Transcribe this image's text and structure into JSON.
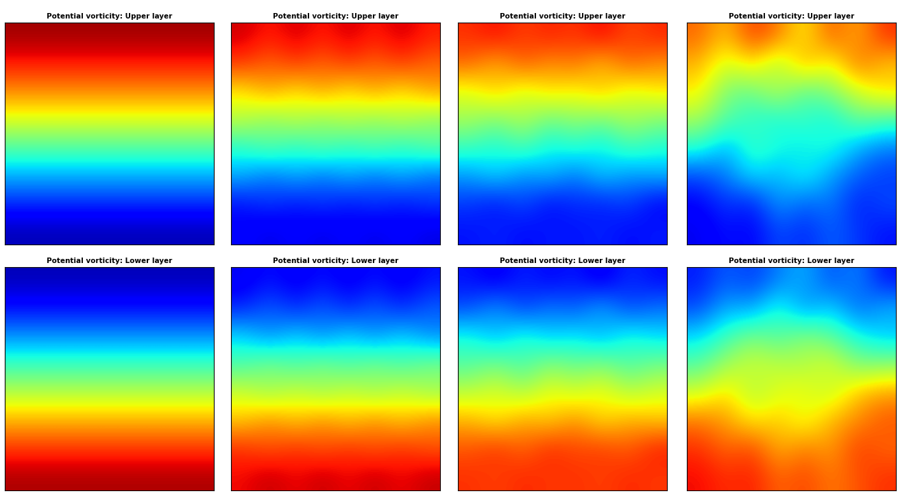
{
  "chart_data": [
    {
      "type": "heatmap",
      "title": "Potential vorticity: Upper layer",
      "color": "jet",
      "color_range": [
        0,
        1
      ],
      "tick_labels": false,
      "cells": [
        [
          0.97,
          0.97,
          0.97,
          0.97,
          0.97,
          0.97,
          0.97,
          0.97
        ],
        [
          0.88,
          0.88,
          0.88,
          0.88,
          0.88,
          0.88,
          0.88,
          0.88
        ],
        [
          0.76,
          0.76,
          0.76,
          0.76,
          0.76,
          0.76,
          0.76,
          0.76
        ],
        [
          0.62,
          0.62,
          0.62,
          0.62,
          0.62,
          0.62,
          0.62,
          0.62
        ],
        [
          0.45,
          0.45,
          0.45,
          0.45,
          0.45,
          0.45,
          0.45,
          0.45
        ],
        [
          0.3,
          0.3,
          0.3,
          0.3,
          0.3,
          0.3,
          0.3,
          0.3
        ],
        [
          0.17,
          0.17,
          0.17,
          0.17,
          0.17,
          0.17,
          0.17,
          0.17
        ],
        [
          0.05,
          0.05,
          0.05,
          0.05,
          0.05,
          0.05,
          0.05,
          0.05
        ]
      ]
    },
    {
      "type": "heatmap",
      "title": "Potential vorticity: Upper layer",
      "color": "jet",
      "color_range": [
        0,
        1
      ],
      "tick_labels": false,
      "cells": [
        [
          0.93,
          0.88,
          0.93,
          0.88,
          0.93,
          0.88,
          0.93,
          0.88
        ],
        [
          0.85,
          0.8,
          0.85,
          0.8,
          0.85,
          0.8,
          0.85,
          0.8
        ],
        [
          0.66,
          0.74,
          0.66,
          0.74,
          0.66,
          0.74,
          0.66,
          0.74
        ],
        [
          0.58,
          0.52,
          0.58,
          0.52,
          0.58,
          0.52,
          0.58,
          0.52
        ],
        [
          0.4,
          0.46,
          0.4,
          0.46,
          0.4,
          0.46,
          0.4,
          0.46
        ],
        [
          0.3,
          0.24,
          0.3,
          0.24,
          0.3,
          0.24,
          0.3,
          0.24
        ],
        [
          0.14,
          0.18,
          0.14,
          0.18,
          0.14,
          0.18,
          0.14,
          0.18
        ],
        [
          0.12,
          0.09,
          0.12,
          0.09,
          0.12,
          0.09,
          0.12,
          0.09
        ]
      ]
    },
    {
      "type": "heatmap",
      "title": "Potential vorticity: Upper layer",
      "color": "jet",
      "color_range": [
        0,
        1
      ],
      "tick_labels": false,
      "cells": [
        [
          0.86,
          0.9,
          0.84,
          0.88,
          0.85,
          0.91,
          0.83,
          0.87
        ],
        [
          0.8,
          0.72,
          0.82,
          0.75,
          0.79,
          0.7,
          0.81,
          0.76
        ],
        [
          0.62,
          0.7,
          0.6,
          0.68,
          0.64,
          0.71,
          0.61,
          0.66
        ],
        [
          0.55,
          0.5,
          0.57,
          0.48,
          0.53,
          0.49,
          0.56,
          0.51
        ],
        [
          0.42,
          0.38,
          0.44,
          0.36,
          0.4,
          0.35,
          0.43,
          0.39
        ],
        [
          0.28,
          0.34,
          0.26,
          0.31,
          0.24,
          0.33,
          0.27,
          0.3
        ],
        [
          0.18,
          0.14,
          0.2,
          0.13,
          0.17,
          0.15,
          0.19,
          0.12
        ],
        [
          0.14,
          0.16,
          0.13,
          0.15,
          0.14,
          0.16,
          0.13,
          0.15
        ]
      ]
    },
    {
      "type": "heatmap",
      "title": "Potential vorticity: Upper layer",
      "color": "jet",
      "color_range": [
        0,
        1
      ],
      "tick_labels": false,
      "cells": [
        [
          0.8,
          0.7,
          0.85,
          0.78,
          0.65,
          0.82,
          0.72,
          0.86
        ],
        [
          0.72,
          0.6,
          0.68,
          0.55,
          0.74,
          0.62,
          0.8,
          0.7
        ],
        [
          0.66,
          0.5,
          0.48,
          0.58,
          0.45,
          0.52,
          0.6,
          0.68
        ],
        [
          0.55,
          0.45,
          0.4,
          0.38,
          0.42,
          0.36,
          0.48,
          0.44
        ],
        [
          0.4,
          0.3,
          0.42,
          0.38,
          0.35,
          0.4,
          0.3,
          0.25
        ],
        [
          0.2,
          0.25,
          0.35,
          0.3,
          0.38,
          0.28,
          0.22,
          0.18
        ],
        [
          0.12,
          0.18,
          0.15,
          0.28,
          0.22,
          0.25,
          0.15,
          0.2
        ],
        [
          0.1,
          0.14,
          0.12,
          0.2,
          0.16,
          0.22,
          0.18,
          0.14
        ]
      ]
    },
    {
      "type": "heatmap",
      "title": "Potential vorticity: Lower layer",
      "color": "jet",
      "color_range": [
        0,
        1
      ],
      "tick_labels": false,
      "cells": [
        [
          0.05,
          0.05,
          0.05,
          0.05,
          0.05,
          0.05,
          0.05,
          0.05
        ],
        [
          0.14,
          0.14,
          0.14,
          0.14,
          0.14,
          0.14,
          0.14,
          0.14
        ],
        [
          0.27,
          0.27,
          0.27,
          0.27,
          0.27,
          0.27,
          0.27,
          0.27
        ],
        [
          0.42,
          0.42,
          0.42,
          0.42,
          0.42,
          0.42,
          0.42,
          0.42
        ],
        [
          0.57,
          0.57,
          0.57,
          0.57,
          0.57,
          0.57,
          0.57,
          0.57
        ],
        [
          0.72,
          0.72,
          0.72,
          0.72,
          0.72,
          0.72,
          0.72,
          0.72
        ],
        [
          0.85,
          0.85,
          0.85,
          0.85,
          0.85,
          0.85,
          0.85,
          0.85
        ],
        [
          0.96,
          0.96,
          0.96,
          0.96,
          0.96,
          0.96,
          0.96,
          0.96
        ]
      ]
    },
    {
      "type": "heatmap",
      "title": "Potential vorticity: Lower layer",
      "color": "jet",
      "color_range": [
        0,
        1
      ],
      "tick_labels": false,
      "cells": [
        [
          0.1,
          0.14,
          0.1,
          0.14,
          0.1,
          0.14,
          0.1,
          0.14
        ],
        [
          0.16,
          0.22,
          0.16,
          0.22,
          0.16,
          0.22,
          0.16,
          0.22
        ],
        [
          0.34,
          0.26,
          0.34,
          0.26,
          0.34,
          0.26,
          0.34,
          0.26
        ],
        [
          0.44,
          0.5,
          0.44,
          0.5,
          0.44,
          0.5,
          0.44,
          0.5
        ],
        [
          0.6,
          0.54,
          0.6,
          0.54,
          0.6,
          0.54,
          0.6,
          0.54
        ],
        [
          0.7,
          0.76,
          0.7,
          0.76,
          0.7,
          0.76,
          0.7,
          0.76
        ],
        [
          0.86,
          0.82,
          0.86,
          0.82,
          0.86,
          0.82,
          0.86,
          0.82
        ],
        [
          0.9,
          0.94,
          0.9,
          0.94,
          0.9,
          0.94,
          0.9,
          0.94
        ]
      ]
    },
    {
      "type": "heatmap",
      "title": "Potential vorticity: Lower layer",
      "color": "jet",
      "color_range": [
        0,
        1
      ],
      "tick_labels": false,
      "cells": [
        [
          0.14,
          0.1,
          0.16,
          0.12,
          0.15,
          0.09,
          0.17,
          0.13
        ],
        [
          0.2,
          0.28,
          0.18,
          0.25,
          0.21,
          0.3,
          0.19,
          0.24
        ],
        [
          0.38,
          0.3,
          0.4,
          0.32,
          0.36,
          0.29,
          0.39,
          0.34
        ],
        [
          0.45,
          0.5,
          0.43,
          0.52,
          0.47,
          0.51,
          0.44,
          0.49
        ],
        [
          0.58,
          0.62,
          0.56,
          0.64,
          0.6,
          0.65,
          0.57,
          0.61
        ],
        [
          0.72,
          0.66,
          0.74,
          0.69,
          0.76,
          0.67,
          0.73,
          0.7
        ],
        [
          0.82,
          0.86,
          0.8,
          0.87,
          0.83,
          0.85,
          0.81,
          0.88
        ],
        [
          0.86,
          0.84,
          0.87,
          0.85,
          0.86,
          0.84,
          0.87,
          0.85
        ]
      ]
    },
    {
      "type": "heatmap",
      "title": "Potential vorticity: Lower layer",
      "color": "jet",
      "color_range": [
        0,
        1
      ],
      "tick_labels": false,
      "cells": [
        [
          0.15,
          0.22,
          0.18,
          0.25,
          0.3,
          0.2,
          0.26,
          0.14
        ],
        [
          0.2,
          0.3,
          0.28,
          0.4,
          0.26,
          0.34,
          0.22,
          0.3
        ],
        [
          0.34,
          0.42,
          0.5,
          0.44,
          0.52,
          0.46,
          0.38,
          0.32
        ],
        [
          0.45,
          0.55,
          0.6,
          0.58,
          0.56,
          0.62,
          0.5,
          0.52
        ],
        [
          0.6,
          0.68,
          0.56,
          0.62,
          0.64,
          0.58,
          0.7,
          0.74
        ],
        [
          0.78,
          0.74,
          0.66,
          0.7,
          0.62,
          0.72,
          0.76,
          0.82
        ],
        [
          0.86,
          0.8,
          0.84,
          0.72,
          0.78,
          0.74,
          0.85,
          0.8
        ],
        [
          0.9,
          0.86,
          0.88,
          0.8,
          0.84,
          0.78,
          0.82,
          0.86
        ]
      ]
    }
  ]
}
